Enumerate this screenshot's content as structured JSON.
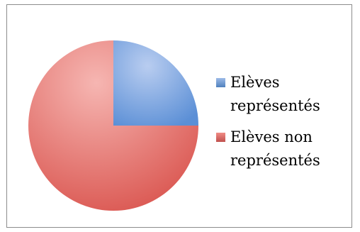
{
  "chart_data": {
    "type": "pie",
    "title": "",
    "categories": [
      "Elèves représentés",
      "Elèves non représentés"
    ],
    "values": [
      25,
      75
    ],
    "colors": [
      "#4F81BD",
      "#C0504D"
    ],
    "legend_position": "right",
    "legend": [
      {
        "line1": "Elèves",
        "line2": "représentés"
      },
      {
        "line1": "Elèves non",
        "line2": "représentés"
      }
    ]
  }
}
